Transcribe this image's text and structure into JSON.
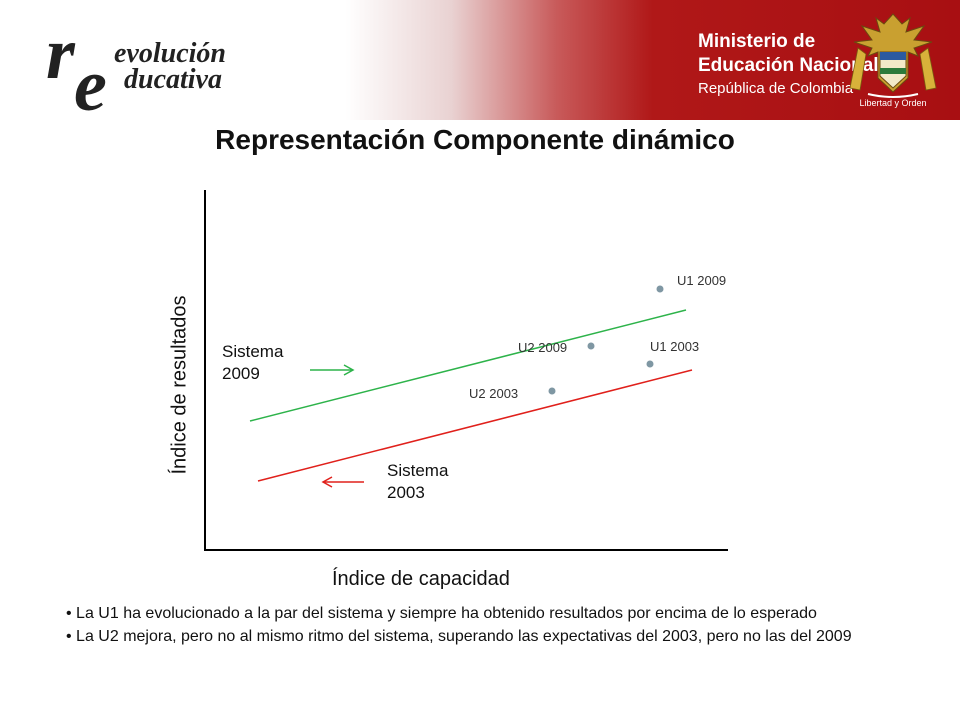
{
  "header": {
    "logo": {
      "line1": "evolución",
      "line2": "ducativa",
      "initial_r": "r",
      "initial_e": "e"
    },
    "ministry": {
      "line1": "Ministerio de",
      "line2": "Educación Nacional",
      "line3": "República de Colombia"
    },
    "coat_caption": "Libertad y Orden"
  },
  "title": "Representación Componente dinámico",
  "diagram": {
    "y_axis_label": "Índice de resultados",
    "x_axis_label": "Índice de capacidad",
    "sistema_2009": {
      "line1": "Sistema",
      "line2": "2009",
      "color": "#2db34a"
    },
    "sistema_2003": {
      "line1": "Sistema",
      "line2": "2003",
      "color": "#e0201b"
    },
    "points": [
      {
        "label": "U1 2009"
      },
      {
        "label": "U2 2009"
      },
      {
        "label": "U1 2003"
      },
      {
        "label": "U2 2003"
      }
    ],
    "point_color": "#7f97a3"
  },
  "bullets": [
    "• La U1 ha evolucionado a la par del sistema y siempre ha obtenido resultados por encima de lo esperado",
    "• La U2 mejora,  pero no al mismo ritmo del sistema, superando las expectativas del 2003, pero no las del 2009"
  ]
}
